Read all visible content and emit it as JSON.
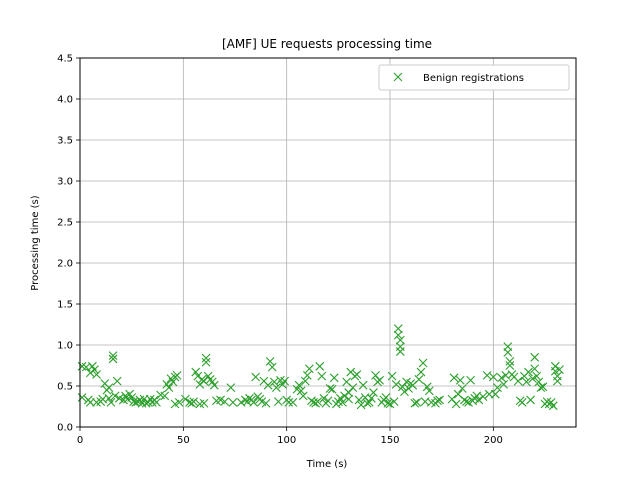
{
  "chart_data": {
    "type": "scatter",
    "title": "[AMF] UE requests processing time",
    "xlabel": "Time (s)",
    "ylabel": "Processing time (s)",
    "xlim": [
      0,
      240
    ],
    "ylim": [
      0,
      4.5
    ],
    "xticks": [
      "0",
      "50",
      "100",
      "150",
      "200"
    ],
    "yticks": [
      "0.0",
      "0.5",
      "1.0",
      "1.5",
      "2.0",
      "2.5",
      "3.0",
      "3.5",
      "4.0",
      "4.5"
    ],
    "grid": true,
    "legend_position": "upper-right",
    "series": [
      {
        "name": "Benign registrations",
        "color": "#2ca02c",
        "marker": "x",
        "points": [
          [
            1,
            0.74
          ],
          [
            1,
            0.36
          ],
          [
            3,
            0.73
          ],
          [
            4,
            0.33
          ],
          [
            5,
            0.66
          ],
          [
            5,
            0.3
          ],
          [
            6,
            0.74
          ],
          [
            7,
            0.7
          ],
          [
            8,
            0.64
          ],
          [
            8,
            0.3
          ],
          [
            10,
            0.31
          ],
          [
            11,
            0.34
          ],
          [
            12,
            0.53
          ],
          [
            13,
            0.45
          ],
          [
            14,
            0.48
          ],
          [
            14,
            0.35
          ],
          [
            15,
            0.3
          ],
          [
            16,
            0.87
          ],
          [
            16,
            0.83
          ],
          [
            17,
            0.38
          ],
          [
            18,
            0.56
          ],
          [
            19,
            0.35
          ],
          [
            21,
            0.33
          ],
          [
            22,
            0.38
          ],
          [
            23,
            0.34
          ],
          [
            24,
            0.4
          ],
          [
            25,
            0.36
          ],
          [
            26,
            0.31
          ],
          [
            27,
            0.3
          ],
          [
            28,
            0.31
          ],
          [
            29,
            0.33
          ],
          [
            30,
            0.29
          ],
          [
            31,
            0.34
          ],
          [
            32,
            0.29
          ],
          [
            33,
            0.3
          ],
          [
            34,
            0.34
          ],
          [
            35,
            0.3
          ],
          [
            36,
            0.33
          ],
          [
            37,
            0.3
          ],
          [
            39,
            0.39
          ],
          [
            41,
            0.38
          ],
          [
            42,
            0.52
          ],
          [
            43,
            0.48
          ],
          [
            44,
            0.59
          ],
          [
            45,
            0.55
          ],
          [
            46,
            0.61
          ],
          [
            46,
            0.28
          ],
          [
            47,
            0.63
          ],
          [
            48,
            0.3
          ],
          [
            51,
            0.34
          ],
          [
            53,
            0.3
          ],
          [
            54,
            0.29
          ],
          [
            55,
            0.31
          ],
          [
            56,
            0.67
          ],
          [
            57,
            0.62
          ],
          [
            58,
            0.28
          ],
          [
            58,
            0.52
          ],
          [
            59,
            0.58
          ],
          [
            60,
            0.29
          ],
          [
            60,
            0.56
          ],
          [
            61,
            0.84
          ],
          [
            61,
            0.79
          ],
          [
            62,
            0.62
          ],
          [
            63,
            0.58
          ],
          [
            64,
            0.55
          ],
          [
            65,
            0.51
          ],
          [
            66,
            0.32
          ],
          [
            68,
            0.33
          ],
          [
            70,
            0.31
          ],
          [
            73,
            0.48
          ],
          [
            74,
            0.3
          ],
          [
            78,
            0.3
          ],
          [
            80,
            0.33
          ],
          [
            81,
            0.31
          ],
          [
            82,
            0.35
          ],
          [
            83,
            0.33
          ],
          [
            84,
            0.3
          ],
          [
            85,
            0.61
          ],
          [
            86,
            0.37
          ],
          [
            87,
            0.34
          ],
          [
            88,
            0.31
          ],
          [
            89,
            0.56
          ],
          [
            90,
            0.29
          ],
          [
            91,
            0.51
          ],
          [
            92,
            0.8
          ],
          [
            93,
            0.73
          ],
          [
            94,
            0.55
          ],
          [
            95,
            0.48
          ],
          [
            96,
            0.31
          ],
          [
            97,
            0.57
          ],
          [
            98,
            0.52
          ],
          [
            99,
            0.56
          ],
          [
            100,
            0.33
          ],
          [
            101,
            0.3
          ],
          [
            103,
            0.3
          ],
          [
            105,
            0.46
          ],
          [
            106,
            0.51
          ],
          [
            107,
            0.44
          ],
          [
            108,
            0.38
          ],
          [
            109,
            0.56
          ],
          [
            110,
            0.63
          ],
          [
            111,
            0.71
          ],
          [
            112,
            0.32
          ],
          [
            113,
            0.3
          ],
          [
            114,
            0.29
          ],
          [
            115,
            0.31
          ],
          [
            116,
            0.74
          ],
          [
            117,
            0.62
          ],
          [
            118,
            0.35
          ],
          [
            119,
            0.29
          ],
          [
            120,
            0.32
          ],
          [
            121,
            0.47
          ],
          [
            122,
            0.46
          ],
          [
            123,
            0.6
          ],
          [
            124,
            0.28
          ],
          [
            125,
            0.31
          ],
          [
            126,
            0.35
          ],
          [
            127,
            0.3
          ],
          [
            128,
            0.38
          ],
          [
            129,
            0.55
          ],
          [
            130,
            0.42
          ],
          [
            130,
            0.34
          ],
          [
            131,
            0.67
          ],
          [
            132,
            0.48
          ],
          [
            133,
            0.62
          ],
          [
            134,
            0.64
          ],
          [
            135,
            0.33
          ],
          [
            136,
            0.27
          ],
          [
            137,
            0.51
          ],
          [
            138,
            0.36
          ],
          [
            139,
            0.29
          ],
          [
            140,
            0.3
          ],
          [
            141,
            0.35
          ],
          [
            142,
            0.42
          ],
          [
            143,
            0.63
          ],
          [
            144,
            0.55
          ],
          [
            145,
            0.57
          ],
          [
            146,
            0.3
          ],
          [
            147,
            0.33
          ],
          [
            148,
            0.36
          ],
          [
            149,
            0.29
          ],
          [
            150,
            0.28
          ],
          [
            151,
            0.62
          ],
          [
            152,
            0.31
          ],
          [
            153,
            0.52
          ],
          [
            154,
            1.2
          ],
          [
            154,
            1.12
          ],
          [
            155,
            1.06
          ],
          [
            155,
            0.98
          ],
          [
            155,
            0.92
          ],
          [
            156,
            0.49
          ],
          [
            157,
            0.43
          ],
          [
            158,
            0.55
          ],
          [
            159,
            0.47
          ],
          [
            160,
            0.53
          ],
          [
            161,
            0.51
          ],
          [
            162,
            0.29
          ],
          [
            163,
            0.3
          ],
          [
            164,
            0.58
          ],
          [
            165,
            0.67
          ],
          [
            166,
            0.78
          ],
          [
            167,
            0.31
          ],
          [
            168,
            0.49
          ],
          [
            169,
            0.44
          ],
          [
            170,
            0.3
          ],
          [
            172,
            0.29
          ],
          [
            173,
            0.32
          ],
          [
            174,
            0.33
          ],
          [
            180,
            0.34
          ],
          [
            181,
            0.6
          ],
          [
            182,
            0.28
          ],
          [
            183,
            0.4
          ],
          [
            184,
            0.57
          ],
          [
            185,
            0.47
          ],
          [
            186,
            0.33
          ],
          [
            187,
            0.31
          ],
          [
            188,
            0.3
          ],
          [
            189,
            0.57
          ],
          [
            190,
            0.32
          ],
          [
            191,
            0.35
          ],
          [
            192,
            0.38
          ],
          [
            193,
            0.33
          ],
          [
            195,
            0.37
          ],
          [
            197,
            0.63
          ],
          [
            198,
            0.4
          ],
          [
            200,
            0.61
          ],
          [
            201,
            0.4
          ],
          [
            202,
            0.48
          ],
          [
            204,
            0.6
          ],
          [
            205,
            0.52
          ],
          [
            206,
            0.63
          ],
          [
            207,
            0.98
          ],
          [
            207,
            0.91
          ],
          [
            208,
            0.8
          ],
          [
            208,
            0.75
          ],
          [
            209,
            0.64
          ],
          [
            210,
            0.61
          ],
          [
            212,
            0.56
          ],
          [
            213,
            0.32
          ],
          [
            214,
            0.3
          ],
          [
            215,
            0.62
          ],
          [
            216,
            0.55
          ],
          [
            217,
            0.67
          ],
          [
            218,
            0.33
          ],
          [
            219,
            0.59
          ],
          [
            220,
            0.85
          ],
          [
            220,
            0.71
          ],
          [
            221,
            0.62
          ],
          [
            222,
            0.55
          ],
          [
            223,
            0.48
          ],
          [
            224,
            0.49
          ],
          [
            225,
            0.28
          ],
          [
            226,
            0.31
          ],
          [
            227,
            0.28
          ],
          [
            228,
            0.3
          ],
          [
            229,
            0.26
          ],
          [
            230,
            0.74
          ],
          [
            230,
            0.68
          ],
          [
            231,
            0.62
          ],
          [
            231,
            0.56
          ],
          [
            232,
            0.7
          ]
        ]
      }
    ]
  }
}
